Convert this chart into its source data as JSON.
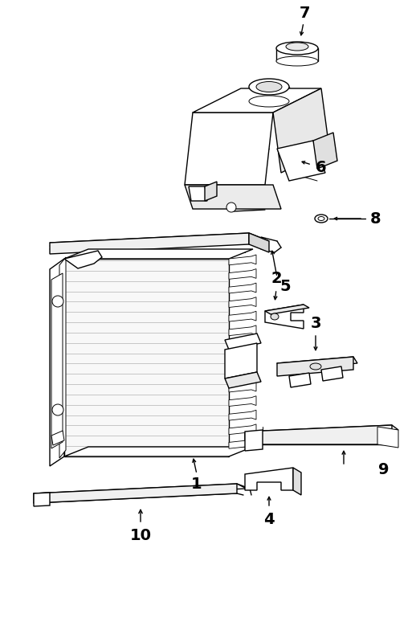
{
  "bg_color": "#ffffff",
  "line_color": "#000000",
  "fig_width": 5.18,
  "fig_height": 7.74,
  "dpi": 100
}
